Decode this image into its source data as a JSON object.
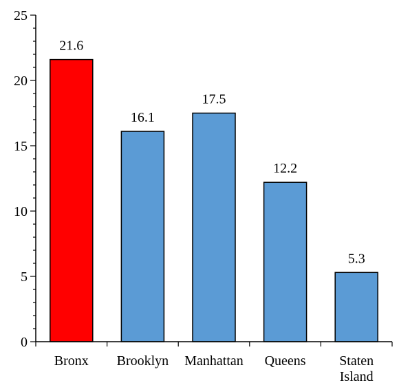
{
  "chart_data": {
    "type": "bar",
    "categories": [
      "Bronx",
      "Brooklyn",
      "Manhattan",
      "Queens",
      "Staten Island"
    ],
    "category_lines": [
      [
        "Bronx"
      ],
      [
        "Brooklyn"
      ],
      [
        "Manhattan"
      ],
      [
        "Queens"
      ],
      [
        "Staten",
        "Island"
      ]
    ],
    "values": [
      21.6,
      16.1,
      17.5,
      12.2,
      5.3
    ],
    "data_labels": [
      "21.6",
      "16.1",
      "17.5",
      "12.2",
      "5.3"
    ],
    "bar_colors": [
      "#ff0000",
      "#5b9bd5",
      "#5b9bd5",
      "#5b9bd5",
      "#5b9bd5"
    ],
    "title": "",
    "xlabel": "",
    "ylabel": "",
    "ylim": [
      0,
      25
    ],
    "yticks": [
      0,
      5,
      10,
      15,
      20,
      25
    ],
    "y_minor_step": 1,
    "grid": false,
    "legend": "none"
  }
}
